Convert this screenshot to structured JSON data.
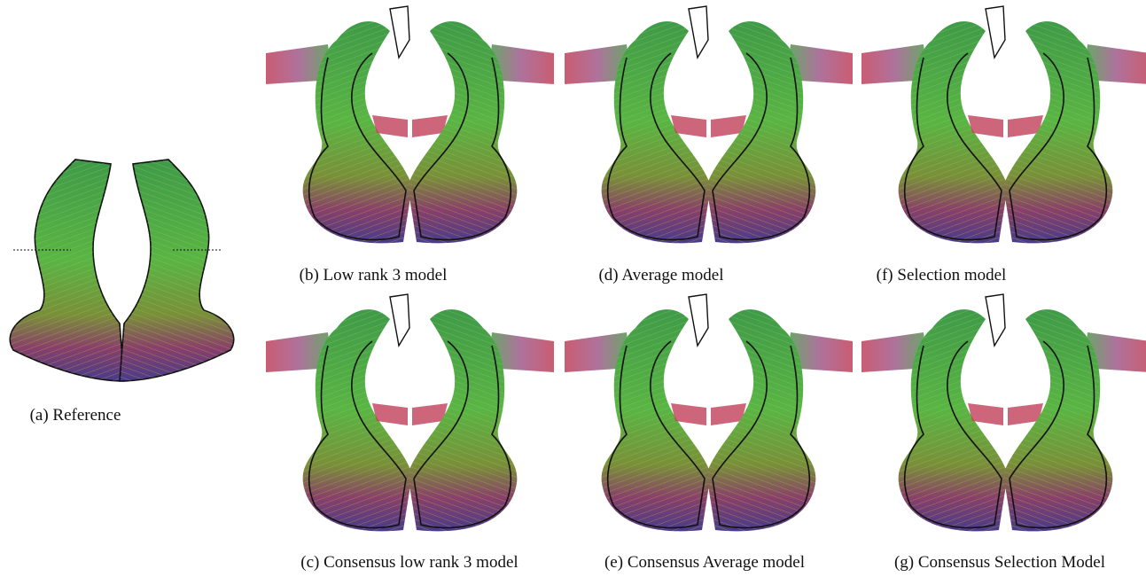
{
  "panels": [
    {
      "caption": "(a) Reference"
    },
    {
      "caption": "(b) Low rank 3 model"
    },
    {
      "caption": "(c) Consensus low rank 3 model"
    },
    {
      "caption": "(d) Average model"
    },
    {
      "caption": "(e) Consensus Average model"
    },
    {
      "caption": "(f) Selection model"
    },
    {
      "caption": "(g) Consensus Selection Model"
    }
  ]
}
